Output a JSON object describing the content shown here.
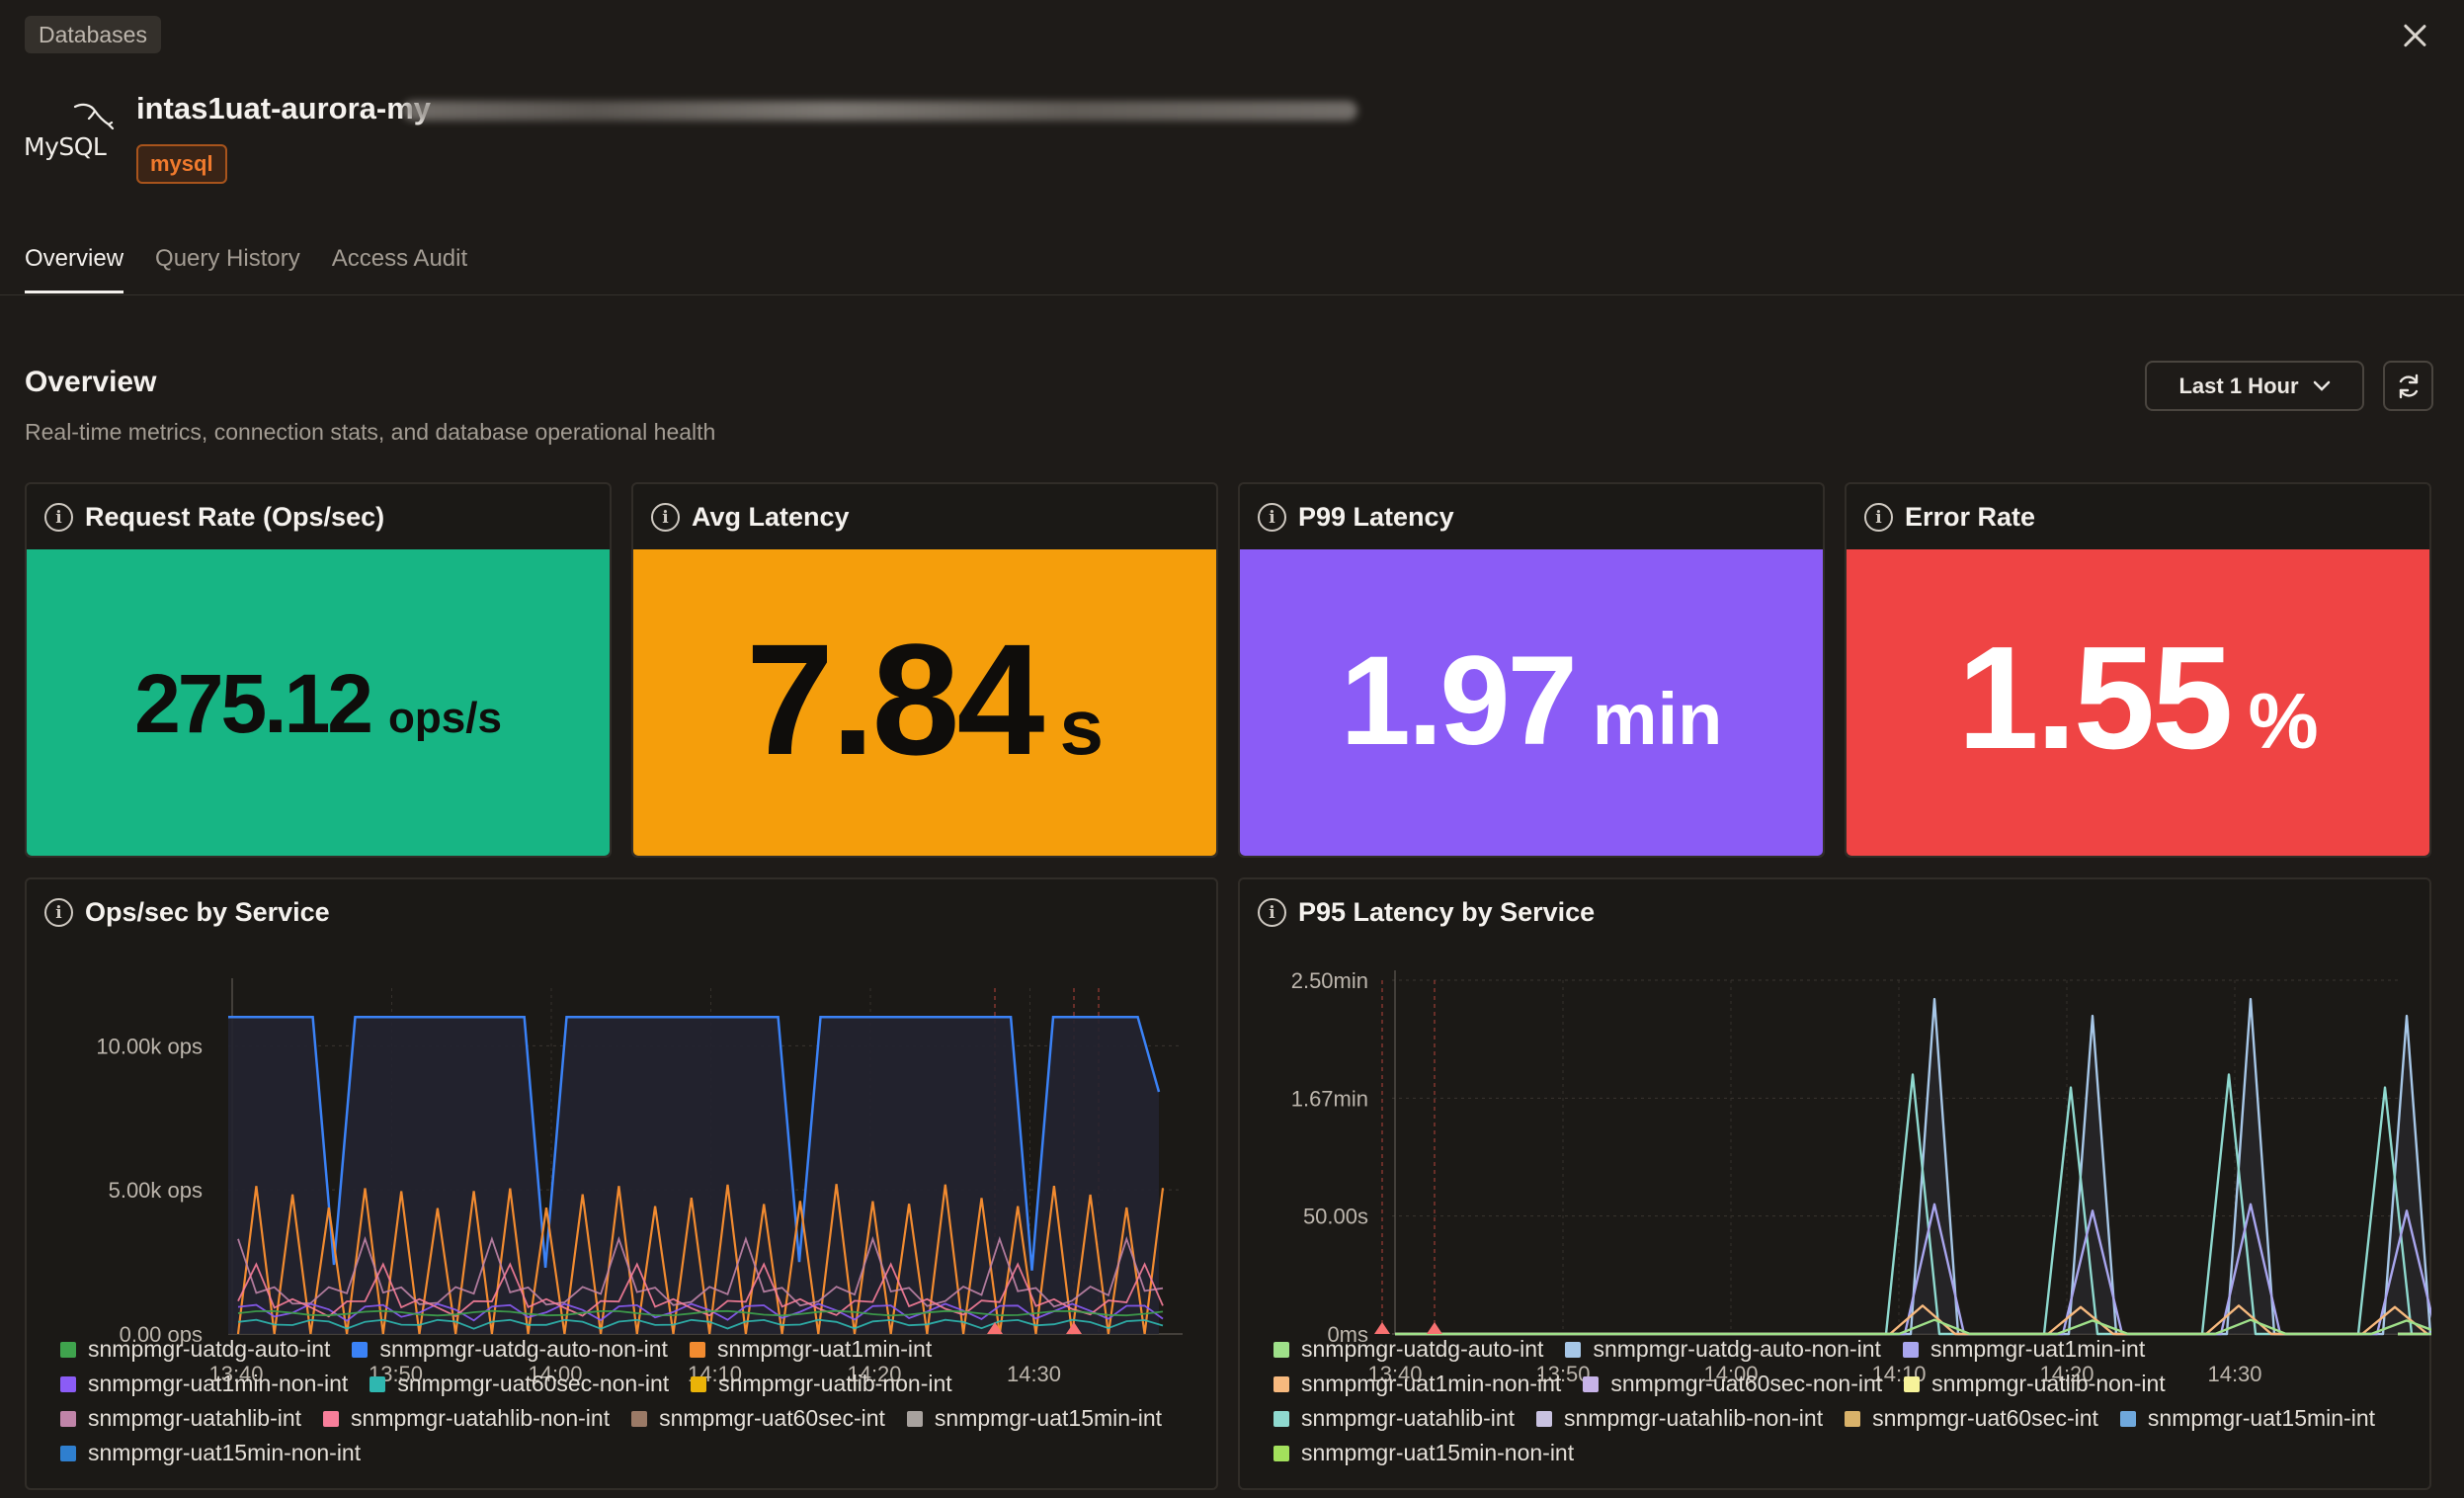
{
  "header": {
    "breadcrumb": "Databases",
    "db_name": "intas1uat-aurora-my",
    "db_logo_text": "MySQL",
    "engine_tag": "mysql"
  },
  "tabs": [
    {
      "label": "Overview",
      "active": true
    },
    {
      "label": "Query History",
      "active": false
    },
    {
      "label": "Access Audit",
      "active": false
    }
  ],
  "overview": {
    "title": "Overview",
    "subtitle": "Real-time metrics, connection stats, and database operational health",
    "time_range": "Last 1 Hour"
  },
  "stats": [
    {
      "title": "Request Rate (Ops/sec)",
      "value": "275.12",
      "unit": "ops/s",
      "bg": "#17b584",
      "fg": "#0f0d0b"
    },
    {
      "title": "Avg Latency",
      "value": "7.84",
      "unit": "s",
      "bg": "#f59e0b",
      "fg": "#0f0d0b"
    },
    {
      "title": "P99 Latency",
      "value": "1.97",
      "unit": "min",
      "bg": "#8b5cf6",
      "fg": "#ffffff"
    },
    {
      "title": "Error Rate",
      "value": "1.55",
      "unit": "%",
      "bg": "#ef4444",
      "fg": "#ffffff"
    }
  ],
  "charts": {
    "ops": {
      "title": "Ops/sec by Service",
      "legend": [
        {
          "name": "snmpmgr-uatdg-auto-int",
          "color": "#3fa34d"
        },
        {
          "name": "snmpmgr-uatdg-auto-non-int",
          "color": "#3b82f6"
        },
        {
          "name": "snmpmgr-uat1min-int",
          "color": "#f28b30"
        },
        {
          "name": "snmpmgr-uat1min-non-int",
          "color": "#8b5cf6"
        },
        {
          "name": "snmpmgr-uat60sec-non-int",
          "color": "#2fb7b0"
        },
        {
          "name": "snmpmgr-uatlib-non-int",
          "color": "#eab308"
        },
        {
          "name": "snmpmgr-uatahlib-int",
          "color": "#c084a8"
        },
        {
          "name": "snmpmgr-uatahlib-non-int",
          "color": "#f87e9a"
        },
        {
          "name": "snmpmgr-uat60sec-int",
          "color": "#9b7a66"
        },
        {
          "name": "snmpmgr-uat15min-int",
          "color": "#a8a29e"
        },
        {
          "name": "snmpmgr-uat15min-non-int",
          "color": "#2f7fcf"
        }
      ]
    },
    "latency": {
      "title": "P95 Latency by Service",
      "legend": [
        {
          "name": "snmpmgr-uatdg-auto-int",
          "color": "#9fe08a"
        },
        {
          "name": "snmpmgr-uatdg-auto-non-int",
          "color": "#a7c7e7"
        },
        {
          "name": "snmpmgr-uat1min-int",
          "color": "#a9a6ee"
        },
        {
          "name": "snmpmgr-uat1min-non-int",
          "color": "#f7b97e"
        },
        {
          "name": "snmpmgr-uat60sec-non-int",
          "color": "#c7b3e8"
        },
        {
          "name": "snmpmgr-uatlib-non-int",
          "color": "#f7f39a"
        },
        {
          "name": "snmpmgr-uatahlib-int",
          "color": "#8fd9cf"
        },
        {
          "name": "snmpmgr-uatahlib-non-int",
          "color": "#c9c2e0"
        },
        {
          "name": "snmpmgr-uat60sec-int",
          "color": "#d9b26a"
        },
        {
          "name": "snmpmgr-uat15min-int",
          "color": "#6fa8dc"
        },
        {
          "name": "snmpmgr-uat15min-non-int",
          "color": "#a3e05c"
        }
      ]
    }
  },
  "chart_data": [
    {
      "type": "line",
      "title": "Ops/sec by Service",
      "x_ticks": [
        "13:40",
        "13:50",
        "14:00",
        "14:10",
        "14:20",
        "14:30"
      ],
      "y_ticks": [
        "0.00 ops",
        "5.00k ops",
        "10.00k ops"
      ],
      "ylim": [
        0,
        12000
      ],
      "series": [
        {
          "name": "snmpmgr-uatdg-auto-non-int",
          "color": "#3b82f6",
          "kind": "plateau",
          "values": [
            11000,
            11000,
            11000,
            11000,
            11000,
            2400,
            11000,
            11000,
            11000,
            11000,
            11000,
            11000,
            11000,
            11000,
            11000,
            2300,
            11000,
            11000,
            11000,
            11000,
            11000,
            11000,
            11000,
            11000,
            11000,
            11000,
            11000,
            2500,
            11000,
            11000,
            11000,
            11000,
            11000,
            11000,
            11000,
            11000,
            11000,
            11000,
            2200,
            11000,
            11000,
            11000,
            11000,
            11000,
            8400
          ]
        },
        {
          "name": "snmpmgr-uat1min-int",
          "color": "#f28b30",
          "kind": "sawtooth",
          "peak": 5200,
          "period": 2
        },
        {
          "name": "snmpmgr-uatahlib-int",
          "color": "#c084a8",
          "kind": "bumps",
          "peak": 3000
        },
        {
          "name": "snmpmgr-uat1min-non-int",
          "color": "#8b5cf6",
          "kind": "low",
          "peak": 1900
        },
        {
          "name": "snmpmgr-uatahlib-non-int",
          "color": "#f87e9a",
          "kind": "bumps2",
          "peak": 2200
        },
        {
          "name": "snmpmgr-uatdg-auto-int",
          "color": "#3fa34d",
          "kind": "flat",
          "peak": 800
        },
        {
          "name": "snmpmgr-uat60sec-non-int",
          "color": "#2fb7b0",
          "kind": "low2",
          "peak": 900
        }
      ]
    },
    {
      "type": "line",
      "title": "P95 Latency by Service",
      "x_ticks": [
        "13:40",
        "13:50",
        "14:00",
        "14:10",
        "14:20",
        "14:30"
      ],
      "y_ticks": [
        "0ms",
        "50.00s",
        "1.67min",
        "2.50min"
      ],
      "ylim": [
        0,
        150
      ],
      "spike_centers_min": [
        15.5,
        36,
        51.8,
        69.5
      ],
      "series": [
        {
          "name": "snmpmgr-uatdg-auto-non-int",
          "color": "#a7c7e7",
          "peak": 142
        },
        {
          "name": "snmpmgr-uatahlib-int",
          "color": "#8fd9cf",
          "peak": 110
        },
        {
          "name": "snmpmgr-uat1min-int",
          "color": "#a9a6ee",
          "peak": 55
        },
        {
          "name": "snmpmgr-uat1min-non-int",
          "color": "#f7b97e",
          "peak": 12
        },
        {
          "name": "snmpmgr-uatdg-auto-int",
          "color": "#9fe08a",
          "peak": 6
        }
      ]
    }
  ]
}
